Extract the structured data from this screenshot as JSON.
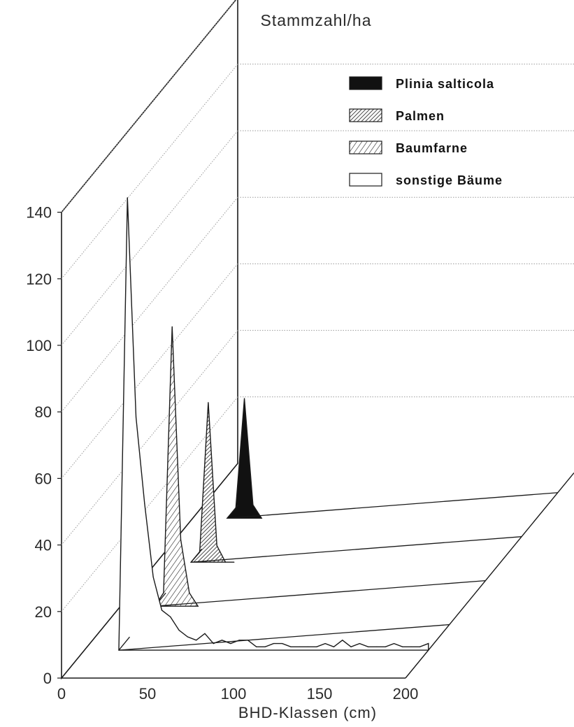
{
  "chart_data": {
    "type": "area",
    "ylabel": "Stammzahl/ha",
    "xlabel": "BHD-Klassen (cm)",
    "ylim": [
      0,
      140
    ],
    "xlim": [
      0,
      200
    ],
    "yticks": [
      "0",
      "20",
      "40",
      "60",
      "80",
      "100",
      "120",
      "140"
    ],
    "xticks": [
      "0",
      "50",
      "100",
      "150",
      "200"
    ],
    "grid": true,
    "legend_position": "top-right",
    "series": [
      {
        "name": "sonstige Bäume",
        "fill": "white",
        "x": [
          20,
          25,
          30,
          35,
          40,
          45,
          50,
          55,
          60,
          65,
          70,
          75,
          80,
          85,
          90,
          95,
          100,
          105,
          110,
          115,
          120,
          125,
          130,
          135,
          140,
          145,
          150,
          155,
          160,
          165,
          170,
          175,
          180,
          185,
          190,
          195,
          200
        ],
        "values": [
          0,
          136,
          70,
          44,
          22,
          12,
          10,
          6,
          4,
          3,
          5,
          2,
          3,
          2,
          3,
          3,
          1,
          1,
          2,
          2,
          1,
          1,
          1,
          1,
          2,
          1,
          3,
          1,
          2,
          1,
          1,
          1,
          2,
          1,
          1,
          1,
          2
        ]
      },
      {
        "name": "Baumfarne",
        "fill": "hatch-light",
        "x": [
          20,
          25,
          30,
          35,
          40,
          45
        ],
        "values": [
          0,
          4,
          84,
          20,
          4,
          0
        ]
      },
      {
        "name": "Palmen",
        "fill": "hatch-dense",
        "x": [
          20,
          25,
          30,
          35,
          40,
          45
        ],
        "values": [
          0,
          3,
          48,
          5,
          0,
          0
        ]
      },
      {
        "name": "Plinia salticola",
        "fill": "solid-black",
        "x": [
          20,
          25,
          30,
          35,
          40
        ],
        "values": [
          0,
          3,
          36,
          4,
          0
        ]
      }
    ],
    "legend_order": [
      "Plinia salticola",
      "Palmen",
      "Baumfarne",
      "sonstige Bäume"
    ]
  },
  "colors": {
    "ink": "#1a1a1a",
    "grid": "#9a9a9a",
    "background": "#ffffff"
  }
}
